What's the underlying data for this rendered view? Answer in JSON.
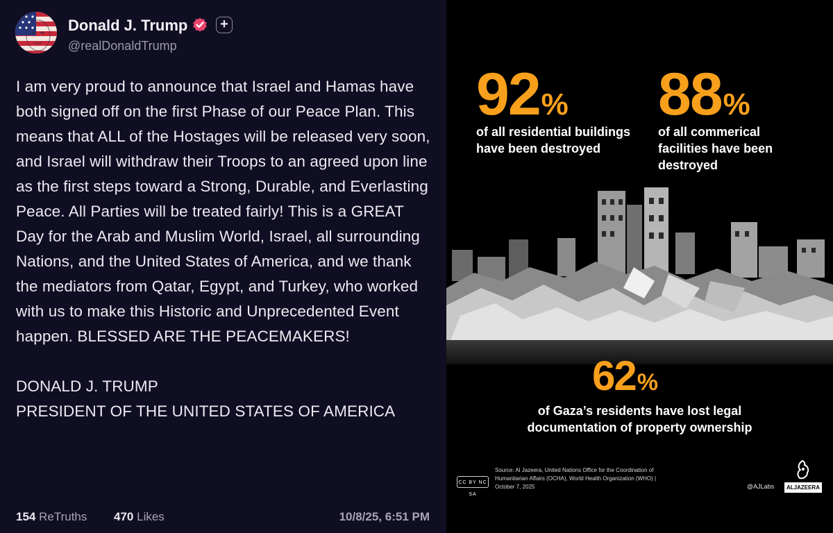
{
  "post": {
    "author": {
      "display_name": "Donald J. Trump",
      "handle": "@realDonaldTrump",
      "avatar_icon": "flag-painted-face-avatar",
      "verified_icon": "verified-badge-icon",
      "verified_color": "#e8436d"
    },
    "body": "I am very proud to announce that Israel and Hamas have both signed off on the first Phase of our Peace Plan. This means that ALL of the Hostages will be released very soon, and Israel will withdraw their Troops to an agreed upon line as the first steps toward a Strong, Durable, and Everlasting Peace. All Parties will be treated fairly! This is a GREAT Day for the Arab and Muslim World, Israel, all surrounding Nations, and the United States of America, and we thank the mediators from Qatar, Egypt, and Turkey, who worked with us to make this Historic and Unprecedented Event happen. BLESSED ARE THE PEACEMAKERS!",
    "signature_line1": "DONALD J. TRUMP",
    "signature_line2": "PRESIDENT OF THE UNITED STATES OF AMERICA",
    "retruths_count": "154",
    "retruths_label": "ReTruths",
    "likes_count": "470",
    "likes_label": "Likes",
    "timestamp": "10/8/25, 6:51 PM",
    "background_color": "#0f0e22"
  },
  "infographic": {
    "accent_color": "#f8a01c",
    "stats": [
      {
        "value": "92",
        "unit": "%",
        "line1": "of all residential buildings",
        "line2": "have been destroyed",
        "line3": ""
      },
      {
        "value": "88",
        "unit": "%",
        "line1": "of all commerical",
        "line2": "facilities have been",
        "line3": "destroyed"
      },
      {
        "value": "62",
        "unit": "%",
        "line1": "of Gaza’s residents have lost legal",
        "line2": "documentation of property ownership",
        "line3": ""
      }
    ],
    "source_line1": "Source:  Al Jazeera, United Nations Office for the Coordination of",
    "source_line2": "Humanitarian Affairs (OCHA), World Health Organization (WHO)  |",
    "source_line3": "October 7, 2025",
    "license_badge": "CC BY NC SA",
    "credit": "@AJLabs",
    "brand": "ALJAZEERA"
  }
}
